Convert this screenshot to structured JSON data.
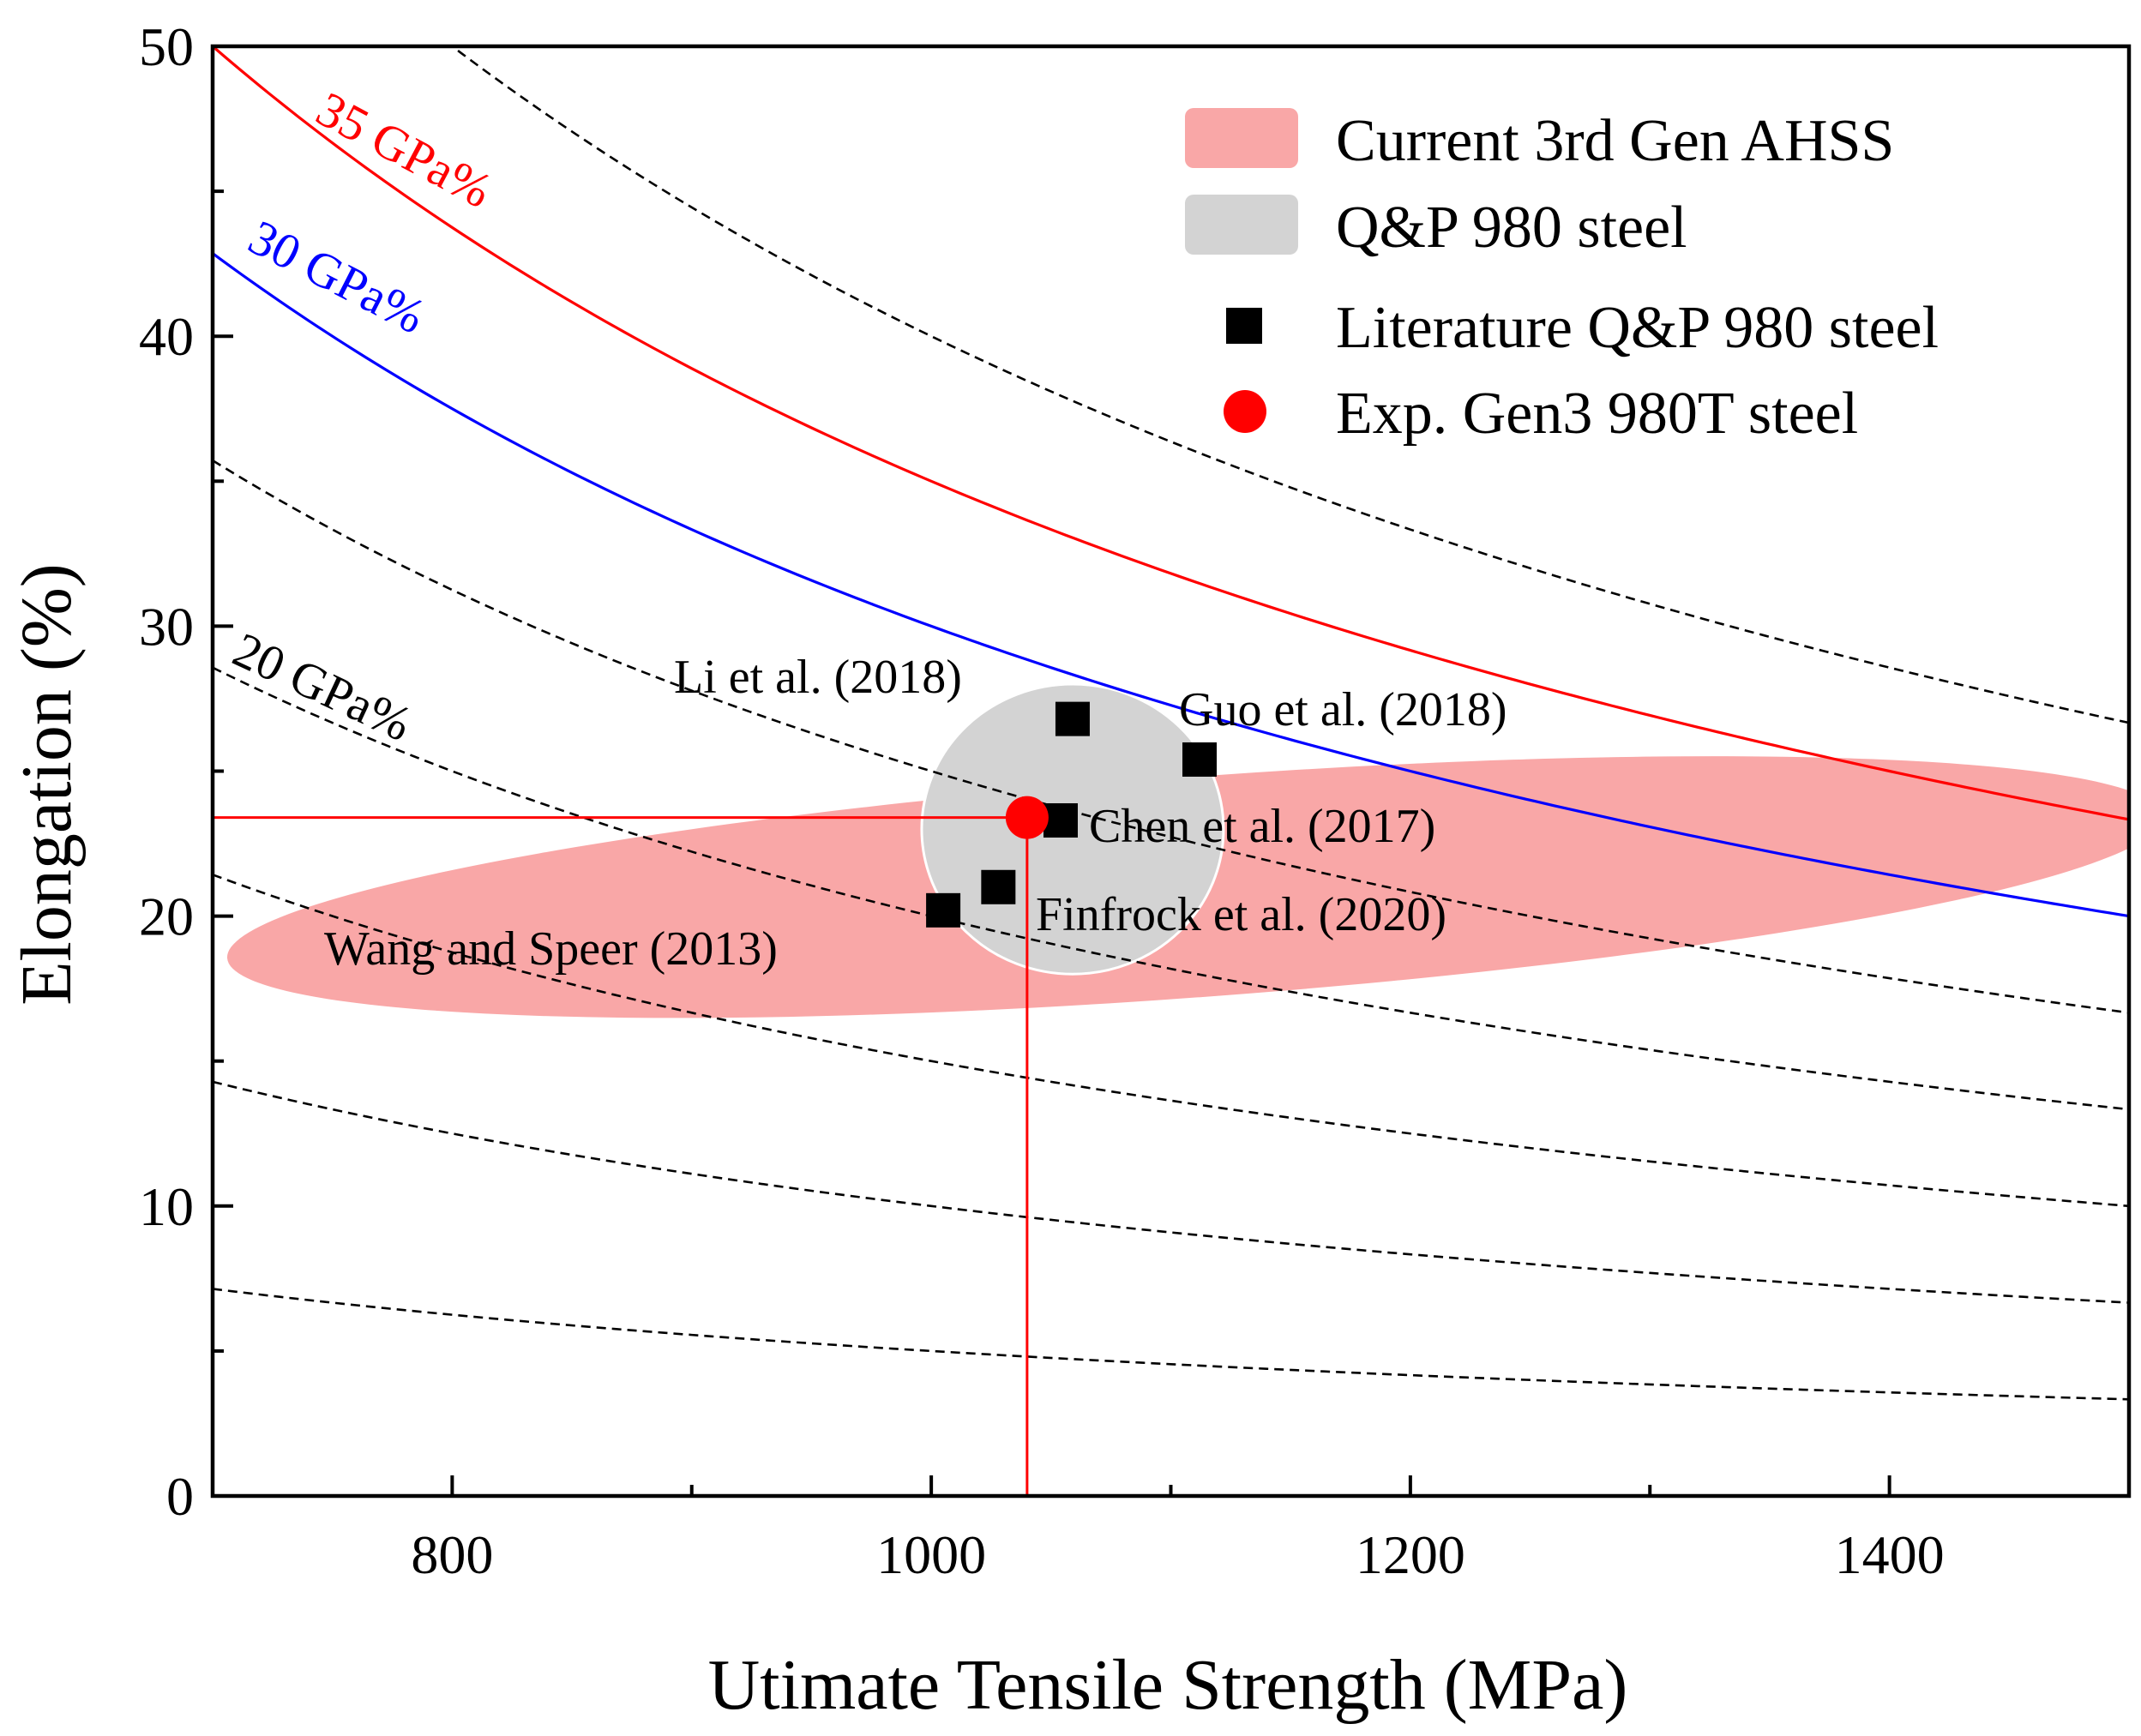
{
  "chart_data": {
    "type": "scatter",
    "xlabel": "Utimate Tensile Strength (MPa)",
    "ylabel": "Elongation (%)",
    "xlim": [
      700,
      1500
    ],
    "ylim": [
      0,
      50
    ],
    "x_ticks": [
      800,
      1000,
      1200,
      1400
    ],
    "y_ticks": [
      0,
      10,
      20,
      30,
      40,
      50
    ],
    "legend": [
      {
        "key": "ahss",
        "label": "Current 3rd Gen AHSS",
        "color": "#f9a7a7",
        "shape": "ellipse"
      },
      {
        "key": "qp",
        "label": "Q&P 980 steel",
        "color": "#d3d3d3",
        "shape": "ellipse"
      },
      {
        "key": "lit",
        "label": "Literature Q&P 980 steel",
        "color": "#000000",
        "shape": "square"
      },
      {
        "key": "exp",
        "label": "Exp. Gen3 980T steel",
        "color": "#ff0000",
        "shape": "circle"
      }
    ],
    "constant_product_curves": [
      {
        "product_gpa_pct": 35,
        "style": "solid",
        "color": "#ff0000",
        "label": "35 GPa%"
      },
      {
        "product_gpa_pct": 30,
        "style": "solid",
        "color": "#0000ff",
        "label": "30 GPa%"
      },
      {
        "product_gpa_pct": 20,
        "style": "dashed",
        "color": "#000000",
        "label": "20 GPa%"
      },
      {
        "product_gpa_pct": 40,
        "style": "dashed",
        "color": "#000000",
        "label": ""
      },
      {
        "product_gpa_pct": 25,
        "style": "dashed",
        "color": "#000000",
        "label": ""
      },
      {
        "product_gpa_pct": 15,
        "style": "dashed",
        "color": "#000000",
        "label": ""
      },
      {
        "product_gpa_pct": 10,
        "style": "dashed",
        "color": "#000000",
        "label": ""
      },
      {
        "product_gpa_pct": 5,
        "style": "dashed",
        "color": "#000000",
        "label": ""
      }
    ],
    "regions": [
      {
        "key": "ahss",
        "label": "Current 3rd Gen AHSS",
        "cx": 1110,
        "cy": 21,
        "rx": 405,
        "ry": 3.8,
        "angle": -4.2,
        "color": "#f9a7a7"
      },
      {
        "key": "qp",
        "label": "Q&P 980 steel",
        "cx": 1059,
        "cy": 23,
        "rx": 63,
        "ry": 5,
        "angle": 0,
        "color": "#d3d3d3"
      }
    ],
    "literature_points": [
      {
        "label": "Li et al. (2018)",
        "x": 1059,
        "y": 26.8
      },
      {
        "label": "Guo et al. (2018)",
        "x": 1112,
        "y": 25.4
      },
      {
        "label": "Chen et al. (2017)",
        "x": 1054,
        "y": 23.3
      },
      {
        "label": "Finfrock et al. (2020)",
        "x": 1028,
        "y": 21.0
      },
      {
        "label": "Wang and Speer (2013)",
        "x": 1005,
        "y": 20.2
      }
    ],
    "experimental_point": {
      "label": "Exp. Gen3 980T steel",
      "x": 1040,
      "y": 23.4
    },
    "reference_lines": {
      "x": 1040,
      "y": 23.4,
      "color": "#ff0000"
    }
  }
}
